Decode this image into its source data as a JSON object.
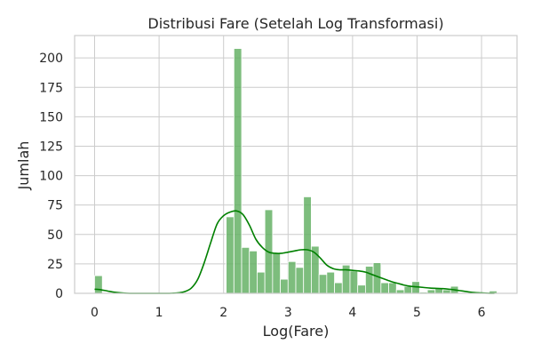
{
  "chart_data": {
    "type": "bar",
    "title": "Distribusi Fare (Setelah Log Transformasi)",
    "xlabel": "Log(Fare)",
    "ylabel": "Jumlah",
    "xlim": [
      -0.31,
      6.55
    ],
    "ylim": [
      0,
      219
    ],
    "xticks": [
      0,
      1,
      2,
      3,
      4,
      5,
      6
    ],
    "yticks": [
      0,
      25,
      50,
      75,
      100,
      125,
      150,
      175,
      200
    ],
    "grid": true,
    "legend": "none",
    "colors": {
      "bar_fill": "#5cad5c",
      "bar_edge": "#ffffff",
      "kde_line": "#008000",
      "grid": "#cccccc",
      "frame": "#cccccc"
    },
    "bins": [
      {
        "x0": 0.0,
        "x1": 0.12,
        "count": 15
      },
      {
        "x0": 2.04,
        "x1": 2.16,
        "count": 65
      },
      {
        "x0": 2.16,
        "x1": 2.28,
        "count": 208
      },
      {
        "x0": 2.28,
        "x1": 2.4,
        "count": 39
      },
      {
        "x0": 2.4,
        "x1": 2.52,
        "count": 36
      },
      {
        "x0": 2.52,
        "x1": 2.64,
        "count": 18
      },
      {
        "x0": 2.64,
        "x1": 2.76,
        "count": 71
      },
      {
        "x0": 2.76,
        "x1": 2.88,
        "count": 34
      },
      {
        "x0": 2.88,
        "x1": 3.0,
        "count": 12
      },
      {
        "x0": 3.0,
        "x1": 3.12,
        "count": 27
      },
      {
        "x0": 3.12,
        "x1": 3.24,
        "count": 22
      },
      {
        "x0": 3.24,
        "x1": 3.36,
        "count": 82
      },
      {
        "x0": 3.36,
        "x1": 3.48,
        "count": 40
      },
      {
        "x0": 3.48,
        "x1": 3.6,
        "count": 16
      },
      {
        "x0": 3.6,
        "x1": 3.72,
        "count": 18
      },
      {
        "x0": 3.72,
        "x1": 3.84,
        "count": 9
      },
      {
        "x0": 3.84,
        "x1": 3.96,
        "count": 24
      },
      {
        "x0": 3.96,
        "x1": 4.08,
        "count": 19
      },
      {
        "x0": 4.08,
        "x1": 4.2,
        "count": 7
      },
      {
        "x0": 4.2,
        "x1": 4.32,
        "count": 23
      },
      {
        "x0": 4.32,
        "x1": 4.44,
        "count": 26
      },
      {
        "x0": 4.44,
        "x1": 4.56,
        "count": 9
      },
      {
        "x0": 4.56,
        "x1": 4.68,
        "count": 9
      },
      {
        "x0": 4.68,
        "x1": 4.8,
        "count": 3
      },
      {
        "x0": 4.8,
        "x1": 4.92,
        "count": 6
      },
      {
        "x0": 4.92,
        "x1": 5.04,
        "count": 10
      },
      {
        "x0": 5.04,
        "x1": 5.16,
        "count": 1
      },
      {
        "x0": 5.16,
        "x1": 5.28,
        "count": 3
      },
      {
        "x0": 5.28,
        "x1": 5.4,
        "count": 4
      },
      {
        "x0": 5.4,
        "x1": 5.52,
        "count": 3
      },
      {
        "x0": 5.52,
        "x1": 5.64,
        "count": 6
      },
      {
        "x0": 6.12,
        "x1": 6.24,
        "count": 2
      }
    ],
    "kde": {
      "x": [
        0.0,
        0.1,
        0.2,
        0.3,
        0.4,
        0.5,
        0.6,
        0.7,
        0.8,
        0.9,
        1.0,
        1.1,
        1.2,
        1.3,
        1.4,
        1.5,
        1.6,
        1.7,
        1.8,
        1.9,
        2.0,
        2.1,
        2.2,
        2.3,
        2.4,
        2.5,
        2.6,
        2.7,
        2.8,
        2.9,
        3.0,
        3.1,
        3.2,
        3.3,
        3.4,
        3.5,
        3.6,
        3.7,
        3.8,
        3.9,
        4.0,
        4.1,
        4.2,
        4.3,
        4.4,
        4.5,
        4.6,
        4.7,
        4.8,
        4.9,
        5.0,
        5.1,
        5.2,
        5.3,
        5.4,
        5.5,
        5.6,
        5.7,
        5.8,
        5.9,
        6.0,
        6.1,
        6.2
      ],
      "y": [
        3.5,
        3.0,
        2.0,
        1.0,
        0.4,
        0.1,
        0.0,
        0.0,
        0.0,
        0.0,
        0.0,
        0.0,
        0.1,
        0.4,
        1.5,
        4.5,
        12,
        26,
        43,
        59,
        66,
        69,
        70,
        67,
        58,
        46,
        39,
        35,
        34,
        34,
        35,
        36,
        37,
        37,
        35,
        30,
        24,
        21,
        20,
        20,
        19.5,
        19,
        18,
        16,
        14,
        12,
        10,
        8.5,
        7,
        6,
        5.5,
        5,
        4.5,
        4.2,
        4,
        3.5,
        2.8,
        2.0,
        1.2,
        0.6,
        0.3,
        0.1,
        0.0
      ]
    }
  }
}
